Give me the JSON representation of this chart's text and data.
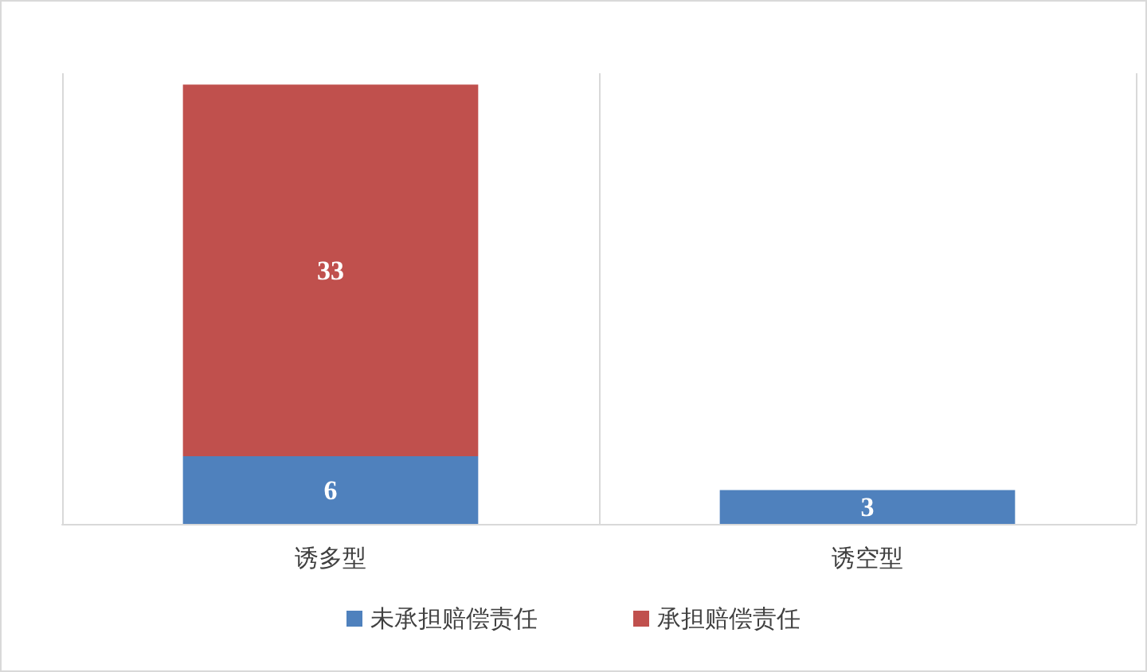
{
  "chart_data": {
    "type": "bar",
    "stacked": true,
    "categories": [
      "诱多型",
      "诱空型"
    ],
    "series": [
      {
        "name": "未承担赔偿责任",
        "color": "#4f81bd",
        "values": [
          6,
          3
        ]
      },
      {
        "name": "承担赔偿责任",
        "color": "#c0504d",
        "values": [
          33,
          null
        ]
      }
    ],
    "data_labels": true,
    "grid": "x",
    "legend": "bottom"
  }
}
